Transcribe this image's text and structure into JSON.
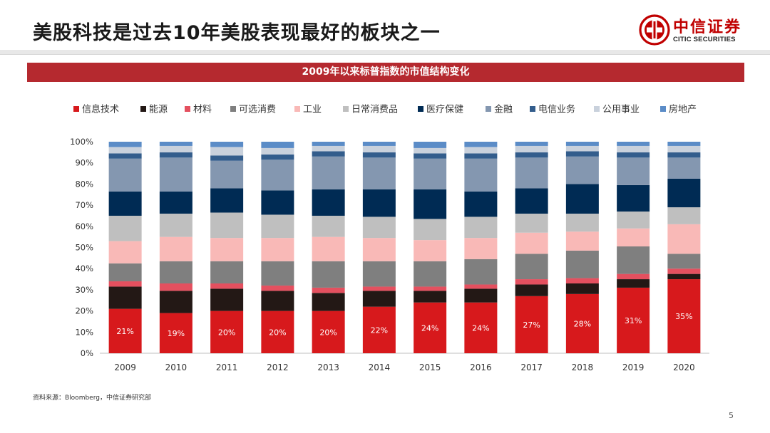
{
  "page": {
    "title": "美股科技是过去10年美股表现最好的板块之一",
    "banner": "2009年以来标普指数的市值结构变化",
    "source": "资料来源：Bloomberg，中信证券研究部",
    "page_number": "5"
  },
  "logo": {
    "cn": "中信证券",
    "en": "CITIC SECURITIES",
    "color": "#c00000"
  },
  "chart_data": {
    "type": "bar",
    "stacked": true,
    "title": "",
    "xlabel": "",
    "ylabel": "",
    "ylim": [
      0,
      100
    ],
    "y_ticks": [
      "0%",
      "10%",
      "20%",
      "30%",
      "40%",
      "50%",
      "60%",
      "70%",
      "80%",
      "90%",
      "100%"
    ],
    "categories": [
      "2009",
      "2010",
      "2011",
      "2012",
      "2013",
      "2014",
      "2015",
      "2016",
      "2017",
      "2018",
      "2019",
      "2020"
    ],
    "legend_position": "top",
    "series": [
      {
        "name": "信息技术",
        "color": "#d7191c",
        "values": [
          21,
          19,
          20,
          20,
          20,
          22,
          24,
          24,
          27,
          28,
          31,
          35
        ],
        "labels": [
          "21%",
          "19%",
          "20%",
          "20%",
          "20%",
          "22%",
          "24%",
          "24%",
          "27%",
          "28%",
          "31%",
          "35%"
        ]
      },
      {
        "name": "能源",
        "color": "#231815",
        "values": [
          10.5,
          10.5,
          10.5,
          9.5,
          8.5,
          7.5,
          5.5,
          6.5,
          5.5,
          5,
          4,
          2.5
        ]
      },
      {
        "name": "材料",
        "color": "#e4505f",
        "values": [
          2.5,
          3.5,
          2.5,
          2.5,
          2.5,
          2,
          2,
          2,
          2.5,
          2.5,
          2.5,
          2.5
        ]
      },
      {
        "name": "可选消费",
        "color": "#7f7f7f",
        "values": [
          8.5,
          10.5,
          10.5,
          11.5,
          12.5,
          12,
          12,
          12,
          12,
          13,
          13,
          7
        ]
      },
      {
        "name": "工业",
        "color": "#f9b9b7",
        "values": [
          10.5,
          11.5,
          11,
          11,
          11.5,
          11,
          10,
          10,
          10,
          9,
          8.5,
          14
        ]
      },
      {
        "name": "日常消费品",
        "color": "#bfbfbf",
        "values": [
          12,
          11,
          12,
          11,
          10,
          10,
          10,
          10,
          9,
          8.5,
          8,
          8
        ]
      },
      {
        "name": "医疗保健",
        "color": "#002b54",
        "values": [
          11.5,
          10.5,
          11.5,
          11.5,
          12.5,
          13,
          14,
          12,
          12,
          14,
          12.5,
          13.5
        ]
      },
      {
        "name": "金融",
        "color": "#8497b0",
        "values": [
          15.5,
          16,
          13,
          14.5,
          15.5,
          15,
          14.5,
          15.5,
          14.5,
          13,
          13,
          10
        ]
      },
      {
        "name": "电信业务",
        "color": "#335d8c",
        "values": [
          2.5,
          2.5,
          2.5,
          2.5,
          2.5,
          2.5,
          2.5,
          2.5,
          2.5,
          2.5,
          2.5,
          2.5
        ]
      },
      {
        "name": "公用事业",
        "color": "#c9d1dc",
        "values": [
          3,
          3,
          4,
          3,
          2.5,
          3,
          2.5,
          3,
          3,
          2.5,
          3,
          3
        ]
      },
      {
        "name": "房地产",
        "color": "#5b8cc7",
        "values": [
          2.5,
          2,
          2.5,
          3,
          2,
          2,
          3,
          2.5,
          2,
          2,
          2,
          2
        ]
      }
    ]
  }
}
